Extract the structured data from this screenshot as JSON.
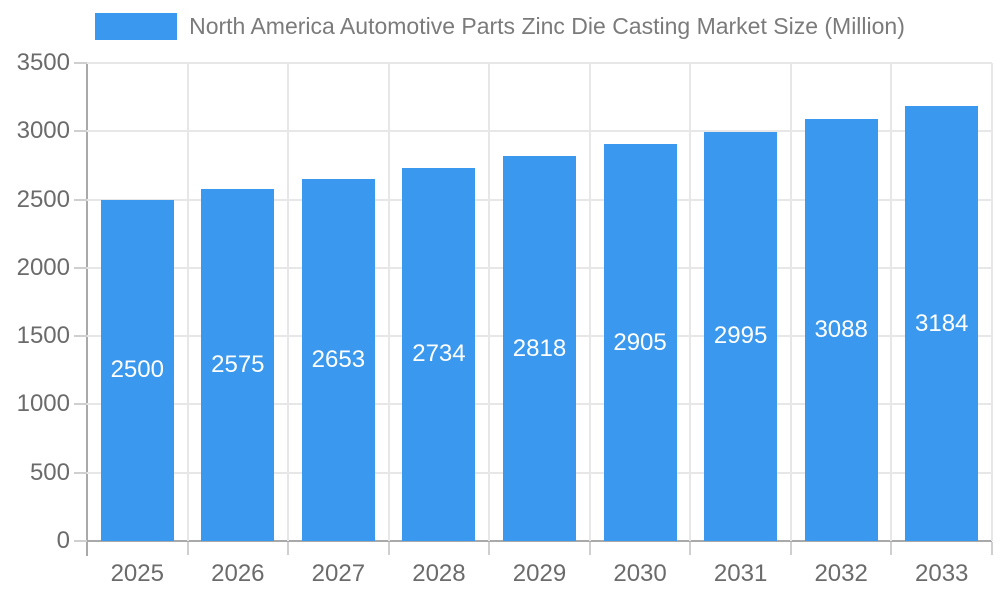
{
  "chart_data": {
    "type": "bar",
    "title": "North America Automotive Parts Zinc Die Casting Market Size (Million)",
    "legend": [
      {
        "label": "North America Automotive Parts Zinc Die Casting Market Size (Million)"
      }
    ],
    "categories": [
      "2025",
      "2026",
      "2027",
      "2028",
      "2029",
      "2030",
      "2031",
      "2032",
      "2033"
    ],
    "values": [
      2500,
      2575,
      2653,
      2734,
      2818,
      2905,
      2995,
      3088,
      3184
    ],
    "bar_value_labels": [
      "2500",
      "2575",
      "2653",
      "2734",
      "2818",
      "2905",
      "2995",
      "3088",
      "3184"
    ],
    "xlabel": "",
    "ylabel": "",
    "ylim": [
      0,
      3500
    ],
    "ytick_step": 500,
    "yticks": [
      "0",
      "500",
      "1000",
      "1500",
      "2000",
      "2500",
      "3000",
      "3500"
    ],
    "grid": true,
    "legend_position": "top",
    "colors": {
      "bar": "#3A99EE",
      "bar_value_label": "#ffffff",
      "axis_text": "#6b6b6b",
      "legend_text": "#7b7b7b",
      "gridline": "#e7e7e7",
      "axis_line": "#a9a9a9",
      "tick": "#cfcfcf"
    }
  }
}
